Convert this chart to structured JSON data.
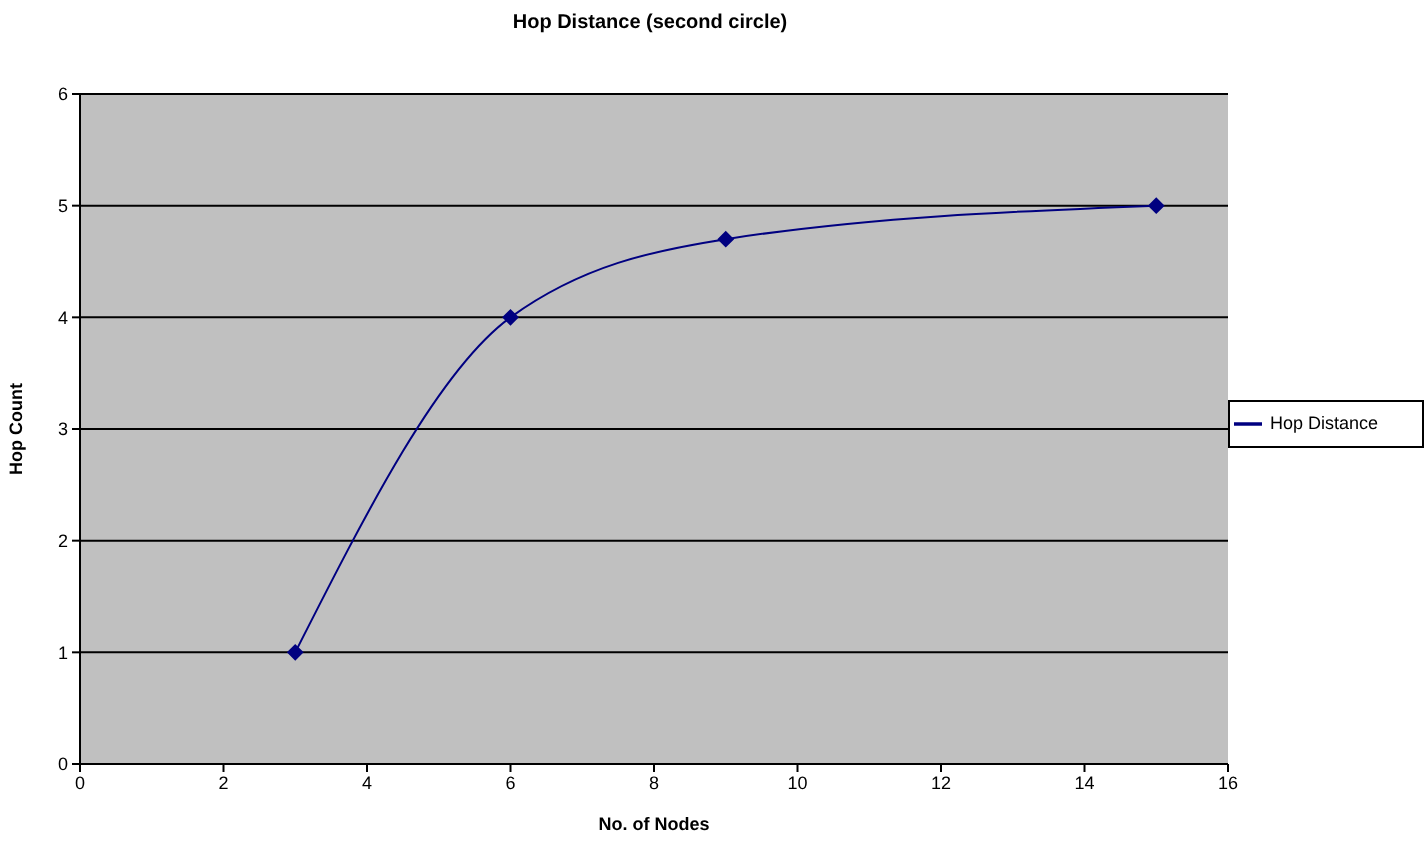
{
  "chart_data": {
    "type": "line",
    "title": "Hop Distance (second circle)",
    "xlabel": "No. of Nodes",
    "ylabel": "Hop Count",
    "x": [
      3,
      6,
      9,
      15
    ],
    "series": [
      {
        "name": "Hop Distance",
        "color": "#000080",
        "values": [
          1,
          4,
          4.7,
          5
        ]
      }
    ],
    "xlim": [
      0,
      16
    ],
    "xticks": [
      0,
      2,
      4,
      6,
      8,
      10,
      12,
      14,
      16
    ],
    "ylim": [
      0,
      6
    ],
    "yticks": [
      0,
      1,
      2,
      3,
      4,
      5,
      6
    ],
    "grid": "y",
    "legend": "right",
    "marker": "diamond",
    "line_style": "solid"
  }
}
